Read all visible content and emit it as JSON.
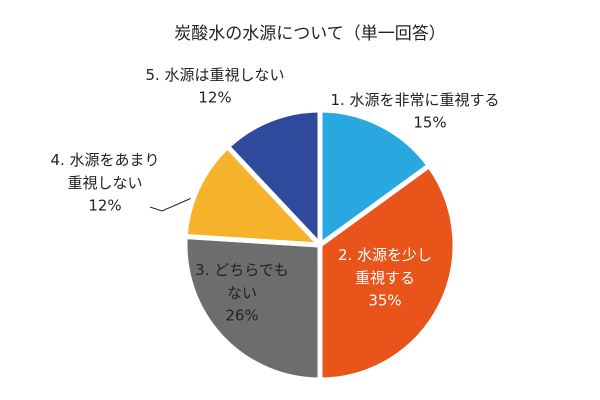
{
  "chart_data": {
    "type": "pie",
    "title": "炭酸水の水源について（単一回答）",
    "categories": [
      "1. 水源を非常に重視する",
      "2. 水源を少し\n重視する",
      "3. どちらでも\nない",
      "4. 水源をあまり\n重視しない",
      "5. 水源は重視しない"
    ],
    "values": [
      15,
      35,
      26,
      12,
      12
    ],
    "value_labels": [
      "15%",
      "35%",
      "26%",
      "12%",
      "12%"
    ],
    "colors": [
      "#29a8e0",
      "#e8541a",
      "#6d6d6d",
      "#f6b22a",
      "#2f4a9c"
    ]
  }
}
